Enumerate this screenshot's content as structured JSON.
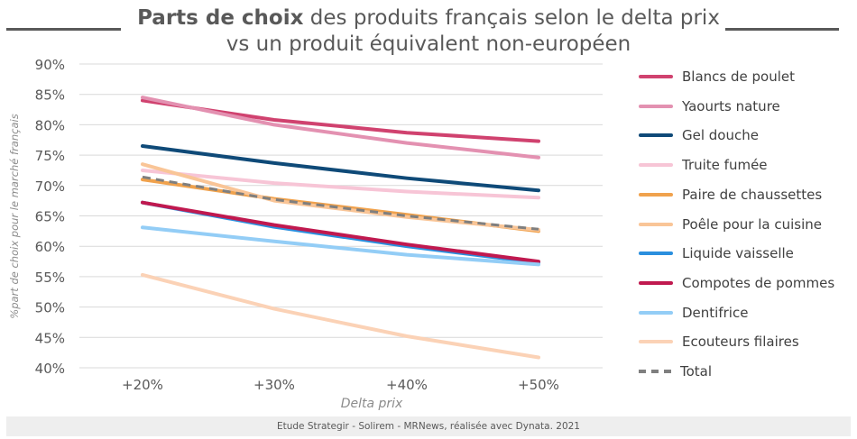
{
  "title_bold": "Parts de choix",
  "title_rest": "des produits français selon le delta prix vs un produit équivalent non-européen",
  "footer": "Etude Strategir - Solirem - MRNews, réalisée avec Dynata. 2021",
  "chart_data": {
    "type": "line",
    "title": "Parts de choix des produits français selon le delta prix vs un produit équivalent non-européen",
    "xlabel": "Delta prix",
    "ylabel": "%part de choix pour le marché français",
    "categories": [
      "+20%",
      "+30%",
      "+40%",
      "+50%"
    ],
    "ylim": [
      0.4,
      0.9
    ],
    "yticks": [
      "40%",
      "45%",
      "50%",
      "55%",
      "60%",
      "65%",
      "70%",
      "75%",
      "80%",
      "85%",
      "90%"
    ],
    "grid": true,
    "legend_position": "right",
    "series": [
      {
        "name": "Blancs de poulet",
        "color": "#d0426f",
        "values": [
          0.84,
          0.808,
          0.787,
          0.773
        ]
      },
      {
        "name": "Yaourts nature",
        "color": "#e391b1",
        "values": [
          0.845,
          0.8,
          0.77,
          0.746
        ]
      },
      {
        "name": "Gel douche",
        "color": "#0f4a78",
        "values": [
          0.765,
          0.737,
          0.712,
          0.692
        ]
      },
      {
        "name": "Truite fumée",
        "color": "#f7c5d6",
        "values": [
          0.725,
          0.704,
          0.69,
          0.68
        ]
      },
      {
        "name": "Paire de chaussettes",
        "color": "#f0a24d",
        "values": [
          0.71,
          0.678,
          0.652,
          0.625
        ]
      },
      {
        "name": "Poêle pour la cuisine",
        "color": "#f9c597",
        "values": [
          0.735,
          0.675,
          0.648,
          0.627
        ]
      },
      {
        "name": "Liquide vaisselle",
        "color": "#2a8fde",
        "values": [
          0.672,
          0.632,
          0.6,
          0.573
        ]
      },
      {
        "name": "Compotes de pommes",
        "color": "#c0194f",
        "values": [
          0.672,
          0.635,
          0.603,
          0.575
        ]
      },
      {
        "name": "Dentifrice",
        "color": "#93cdf6",
        "values": [
          0.631,
          0.608,
          0.586,
          0.57
        ]
      },
      {
        "name": "Ecouteurs filaires",
        "color": "#fbd2b6",
        "values": [
          0.553,
          0.497,
          0.452,
          0.417
        ]
      },
      {
        "name": "Total",
        "color": "#7f7f7f",
        "dashed": true,
        "values": [
          0.714,
          0.677,
          0.65,
          0.628
        ]
      }
    ]
  }
}
